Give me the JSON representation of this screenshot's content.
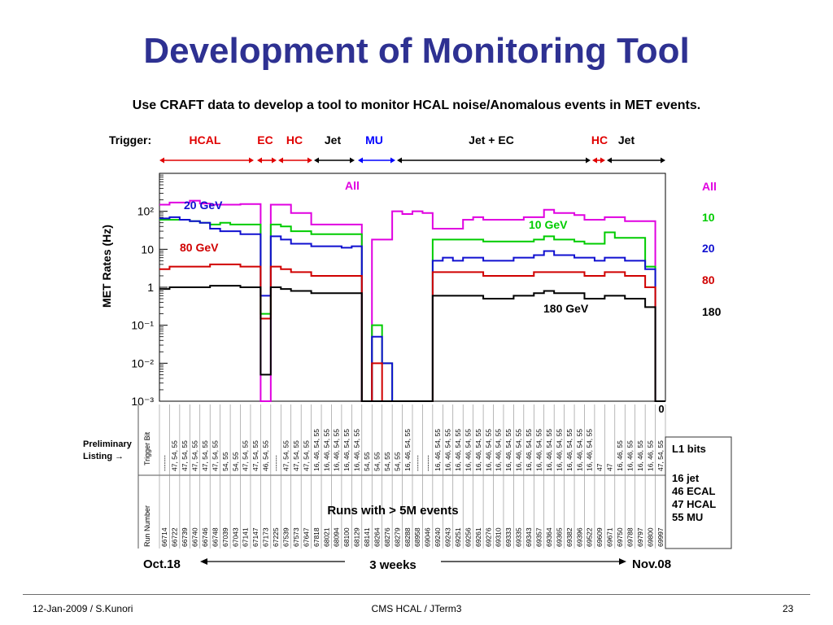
{
  "slide": {
    "title": "Development of Monitoring Tool",
    "subtitle": "Use CRAFT data to develop a tool to monitor HCAL noise/Anomalous events in MET events.",
    "footer_left": "12-Jan-2009 / S.Kunori",
    "footer_center": "CMS HCAL / JTerm3",
    "footer_right": "23"
  },
  "colors": {
    "title": "#2e3192",
    "All": "#e000e0",
    "10": "#00cc00",
    "20": "#1010d0",
    "80": "#d00000",
    "180": "#000000",
    "hcal": "#e00000",
    "mu": "#0000ff"
  },
  "trigger_bar": {
    "label": "Trigger:",
    "segments": [
      {
        "label": "HCAL",
        "color": "#e00000"
      },
      {
        "label": "EC",
        "color": "#e00000"
      },
      {
        "label": "HC",
        "color": "#e00000"
      },
      {
        "label": "Jet",
        "color": "#000000"
      },
      {
        "label": "MU",
        "color": "#0000ff"
      },
      {
        "label": "Jet + EC",
        "color": "#000000"
      },
      {
        "label": "HC",
        "color": "#e00000"
      },
      {
        "label": "Jet",
        "color": "#000000"
      }
    ]
  },
  "chart_data": {
    "type": "line",
    "ylabel": "MET Rates (Hz)",
    "yscale": "log",
    "ylim": [
      0.001,
      1000
    ],
    "y_ticks": [
      "1",
      "10",
      "10²",
      "10⁻¹",
      "10⁻²",
      "10⁻³"
    ],
    "x_bottom_label": "0",
    "categories_run_numbers": [
      "66714",
      "66722",
      "66739",
      "66740",
      "66746",
      "66748",
      "67039",
      "67043",
      "67141",
      "67147",
      "67173",
      "67225",
      "67539",
      "67573",
      "67647",
      "67818",
      "68021",
      "68094",
      "68100",
      "68129",
      "68141",
      "68264",
      "68276",
      "68279",
      "68288",
      "68958",
      "69046",
      "69240",
      "69243",
      "69251",
      "69256",
      "69261",
      "69276",
      "69310",
      "69333",
      "69335",
      "69343",
      "69357",
      "69364",
      "69365",
      "69382",
      "69396",
      "69522",
      "69609",
      "69671",
      "69750",
      "69788",
      "69797",
      "69800",
      "69997"
    ],
    "series": [
      {
        "name": "All",
        "values": [
          150,
          170,
          170,
          190,
          160,
          150,
          150,
          150,
          155,
          155,
          0.001,
          150,
          150,
          90,
          90,
          45,
          45,
          45,
          45,
          45,
          0.001,
          18,
          18,
          100,
          85,
          100,
          90,
          35,
          35,
          35,
          60,
          70,
          60,
          60,
          60,
          60,
          70,
          70,
          110,
          90,
          90,
          80,
          60,
          60,
          70,
          70,
          55,
          55,
          55,
          0.001
        ]
      },
      {
        "name": "10",
        "values": [
          60,
          60,
          60,
          55,
          50,
          45,
          50,
          45,
          45,
          45,
          0.2,
          45,
          40,
          30,
          30,
          25,
          25,
          25,
          25,
          25,
          0.001,
          0.1,
          0.01,
          0.001,
          0.001,
          0.001,
          0.001,
          18,
          18,
          18,
          18,
          18,
          16,
          16,
          16,
          16,
          16,
          18,
          22,
          18,
          18,
          16,
          14,
          14,
          28,
          20,
          20,
          20,
          3.5,
          0.001
        ]
      },
      {
        "name": "20",
        "values": [
          65,
          70,
          60,
          55,
          50,
          35,
          30,
          30,
          25,
          25,
          0.6,
          22,
          18,
          14,
          14,
          12,
          12,
          12,
          11,
          12,
          0.001,
          0.05,
          0.01,
          0.001,
          0.001,
          0.001,
          0.001,
          5,
          6,
          5,
          6,
          6,
          5,
          5,
          5,
          6,
          6,
          7,
          9,
          7,
          7,
          6,
          6,
          5,
          6,
          6,
          5,
          5,
          3,
          0.001
        ]
      },
      {
        "name": "80",
        "values": [
          3,
          3.5,
          3.5,
          3.5,
          3.5,
          4,
          4,
          4,
          3.5,
          3.5,
          0.15,
          3.5,
          3,
          2.5,
          2.5,
          2,
          2,
          2,
          2,
          2,
          0.001,
          0.01,
          0.001,
          0.001,
          0.001,
          0.001,
          0.001,
          2.5,
          2.5,
          2.5,
          2.5,
          2.5,
          2,
          2,
          2,
          2,
          2,
          2.5,
          2.5,
          2.5,
          2.5,
          2.5,
          2,
          2,
          2.5,
          2.5,
          2,
          2,
          1,
          0.001
        ]
      },
      {
        "name": "180",
        "values": [
          0.9,
          1,
          1,
          1,
          1,
          1.1,
          1.1,
          1.1,
          1,
          1,
          0.005,
          1,
          0.9,
          0.8,
          0.8,
          0.7,
          0.7,
          0.7,
          0.7,
          0.7,
          0.001,
          0.001,
          0.001,
          0.001,
          0.001,
          0.001,
          0.001,
          0.6,
          0.6,
          0.6,
          0.6,
          0.6,
          0.5,
          0.5,
          0.5,
          0.6,
          0.6,
          0.7,
          0.8,
          0.7,
          0.7,
          0.7,
          0.5,
          0.5,
          0.6,
          0.6,
          0.5,
          0.5,
          0.3,
          0.001
        ]
      }
    ],
    "annotations": [
      "All",
      "20 GeV",
      "80 GeV",
      "10 GeV",
      "180 GeV"
    ],
    "legend": [
      {
        "label": "All",
        "color": "#e000e0"
      },
      {
        "label": "10",
        "color": "#00cc00"
      },
      {
        "label": "20",
        "color": "#1010d0"
      },
      {
        "label": "80",
        "color": "#d00000"
      },
      {
        "label": "180",
        "color": "#000000"
      }
    ]
  },
  "table": {
    "preliminary_listing": [
      "Preliminary",
      "Listing →"
    ],
    "trigger_bit_header": "Trigger Bit",
    "run_number_header": "Run Number",
    "trigger_bits": [
      "-------",
      "47, 54, 55",
      "47, 54, 55",
      "47, 54, 55",
      "47, 54, 55",
      "47, 54, 55",
      "54, 55",
      "54, 55",
      "47, 54, 55",
      "47, 54, 55",
      "46, 54, 55",
      "-------",
      "47, 54, 55",
      "47, 54, 55",
      "47, 54, 55",
      "16, 46, 54, 55",
      "16, 46, 54, 55",
      "16, 46, 54, 55",
      "16, 46, 54, 55",
      "16, 46, 54, 55",
      "54, 55",
      "54, 55",
      "54, 55",
      "54, 55",
      "16, 46, 54, 55",
      "-------",
      "-------",
      "16, 46, 54, 55",
      "16, 46, 54, 55",
      "16, 46, 54, 55",
      "16, 46, 54, 55",
      "16, 46, 54, 55",
      "16, 46, 54, 55",
      "16, 46, 54, 55",
      "16, 46, 54, 55",
      "16, 46, 54, 55",
      "16, 46, 54, 55",
      "16, 46, 54, 55",
      "16, 46, 54, 55",
      "16, 46, 54, 55",
      "16, 46, 54, 55",
      "16, 46, 54, 55",
      "16, 46, 54, 55",
      "47",
      "47",
      "16, 46, 55",
      "16, 46, 55",
      "16, 46, 55",
      "16, 46, 55",
      "47, 54, 55"
    ]
  },
  "l1_bits": {
    "title": "L1 bits",
    "items": [
      "16  jet",
      "46  ECAL",
      "47  HCAL",
      "55  MU"
    ]
  },
  "runs_note": "Runs with > 5M events",
  "timeline": {
    "start": "Oct.18",
    "middle": "3 weeks",
    "end": "Nov.08"
  }
}
